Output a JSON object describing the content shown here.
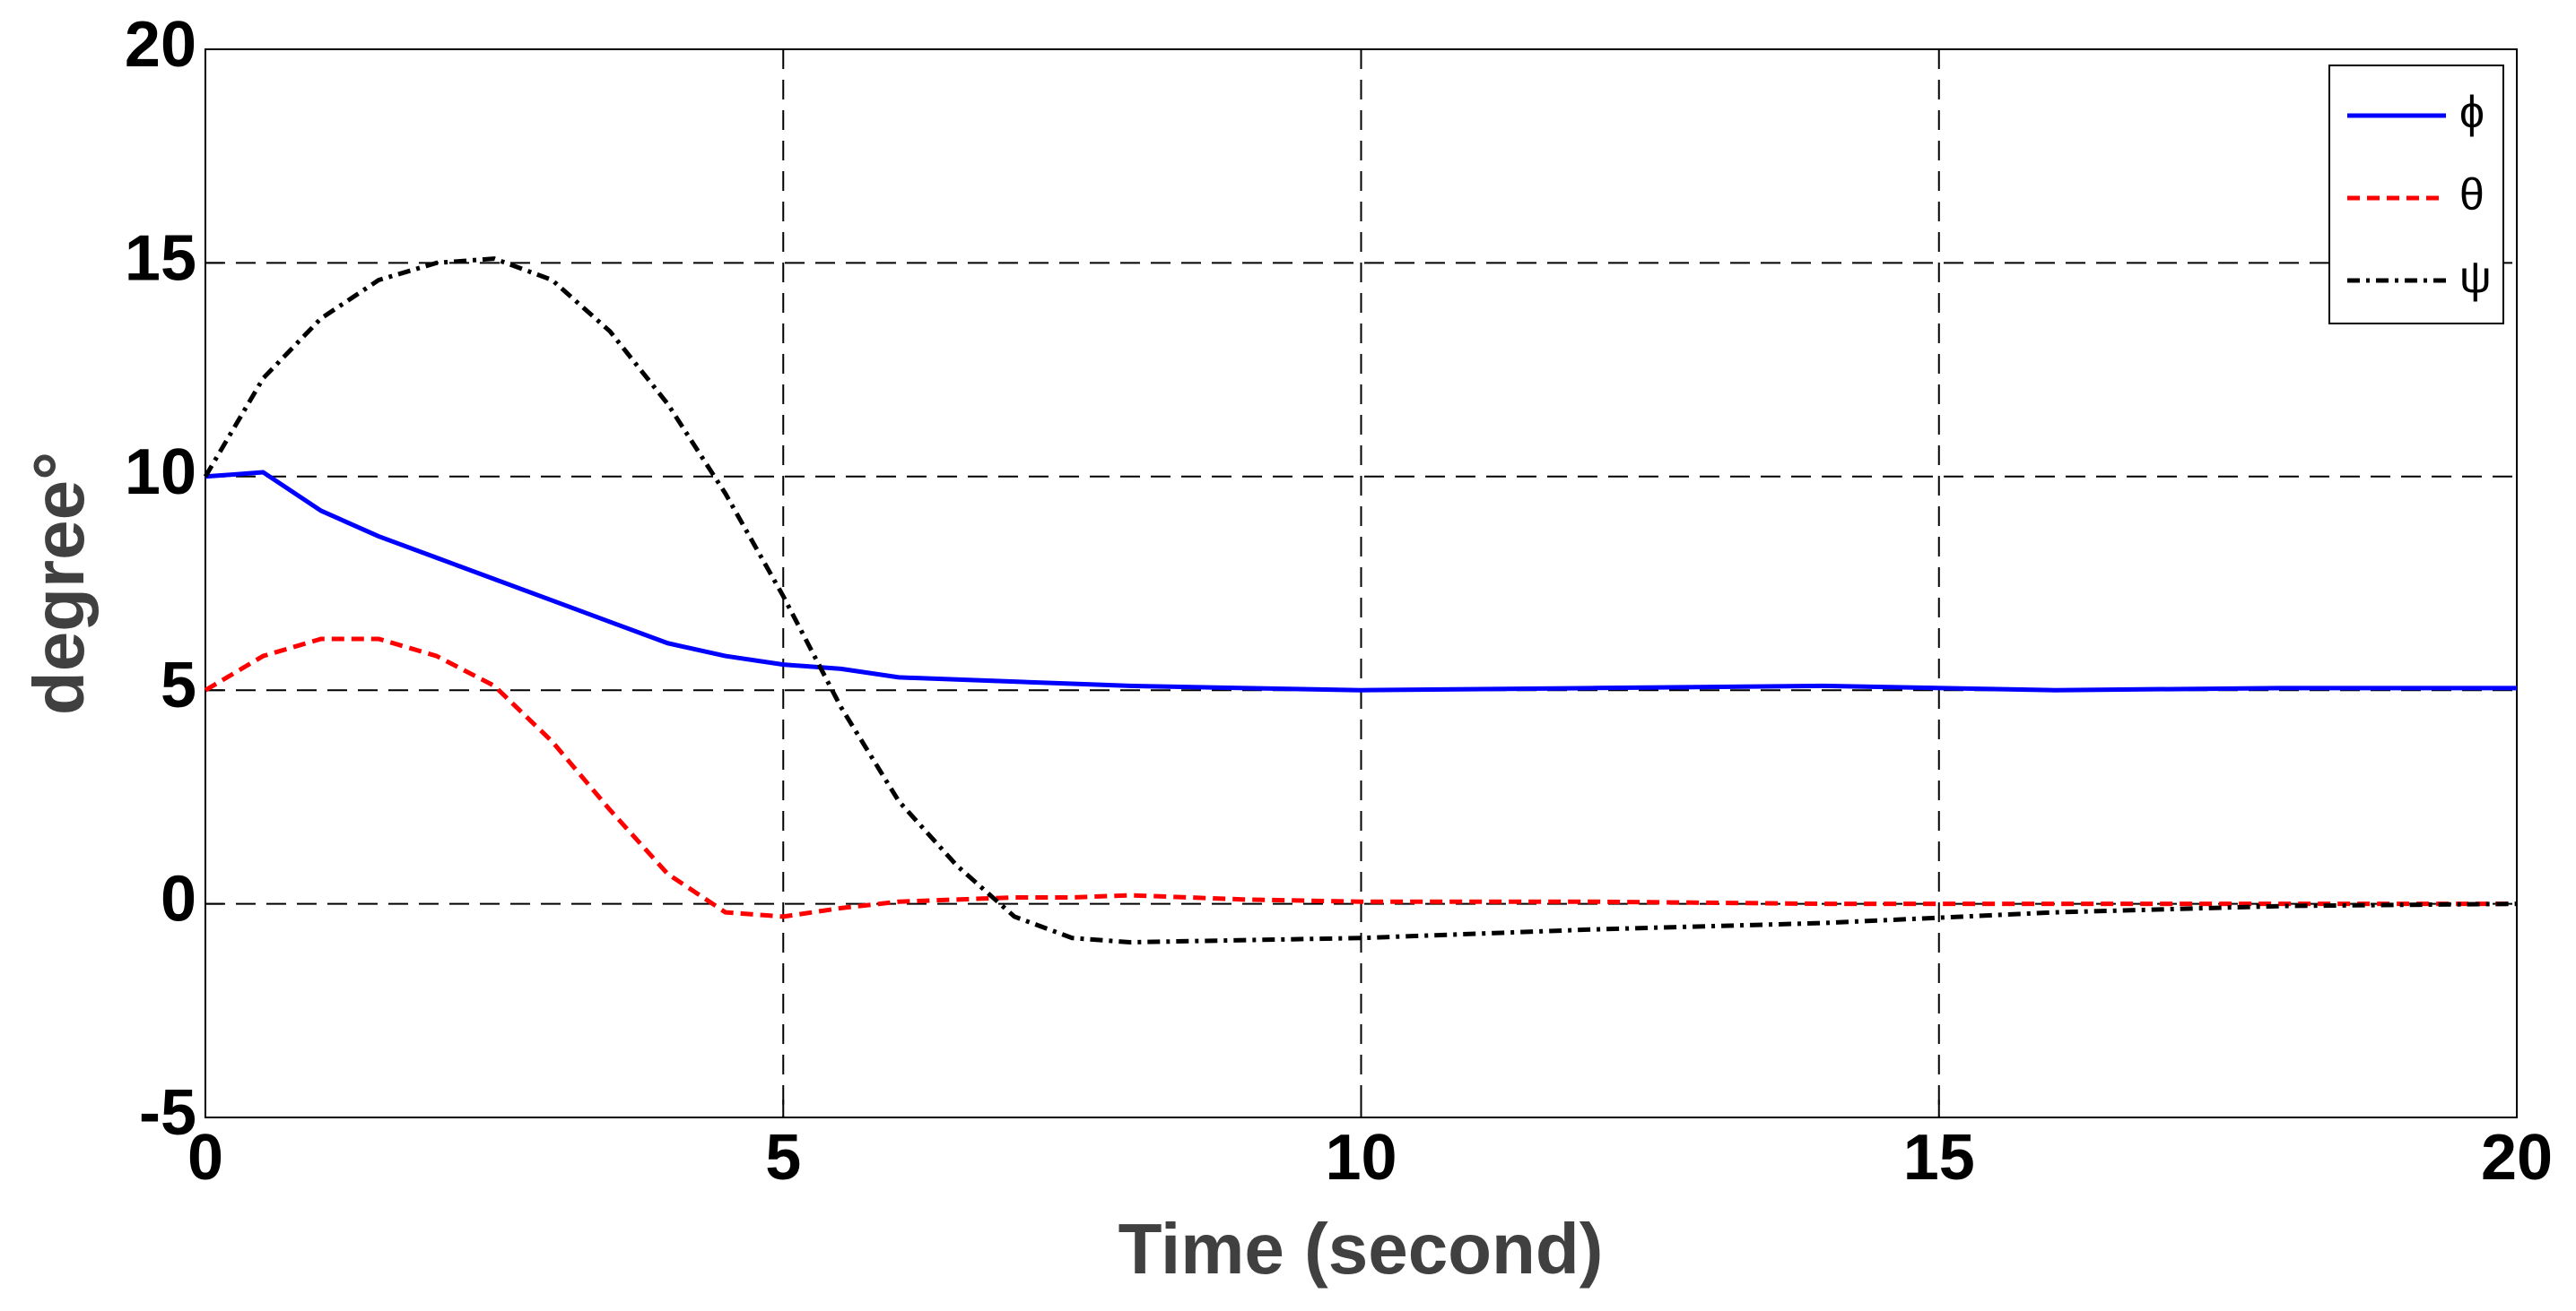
{
  "chart_data": {
    "type": "line",
    "x_label": "Time (second)",
    "y_label": "degree°",
    "x": [
      0,
      0.5,
      1,
      1.5,
      2,
      2.5,
      3,
      3.5,
      4,
      4.5,
      5,
      5.5,
      6,
      6.5,
      7,
      7.5,
      8,
      9,
      10,
      12,
      14,
      16,
      18,
      20
    ],
    "series": [
      {
        "name": "ϕ",
        "color": "#0000ff",
        "line_style": "solid",
        "values": [
          10,
          10.1,
          9.2,
          8.6,
          8.1,
          7.6,
          7.1,
          6.6,
          6.1,
          5.8,
          5.6,
          5.5,
          5.3,
          5.25,
          5.2,
          5.15,
          5.1,
          5.05,
          5.0,
          5.05,
          5.1,
          5.0,
          5.05,
          5.05
        ]
      },
      {
        "name": "θ",
        "color": "#ff0000",
        "line_style": "dashed",
        "values": [
          5,
          5.8,
          6.2,
          6.2,
          5.8,
          5.1,
          3.8,
          2.2,
          0.7,
          -0.2,
          -0.3,
          -0.1,
          0.05,
          0.1,
          0.15,
          0.15,
          0.2,
          0.1,
          0.05,
          0.05,
          0,
          0,
          0,
          0
        ]
      },
      {
        "name": "ψ",
        "color": "#000000",
        "line_style": "dashdot",
        "values": [
          10,
          12.3,
          13.7,
          14.6,
          15.0,
          15.1,
          14.6,
          13.4,
          11.7,
          9.6,
          7.2,
          4.6,
          2.4,
          0.9,
          -0.3,
          -0.8,
          -0.9,
          -0.85,
          -0.8,
          -0.6,
          -0.45,
          -0.2,
          -0.05,
          0
        ]
      }
    ],
    "xlim": [
      0,
      20
    ],
    "xticks": [
      0,
      5,
      10,
      15,
      20
    ],
    "ylim": [
      -5,
      20
    ],
    "yticks": [
      -5,
      0,
      5,
      10,
      15,
      20
    ],
    "grid": true,
    "legend": "top-right"
  }
}
